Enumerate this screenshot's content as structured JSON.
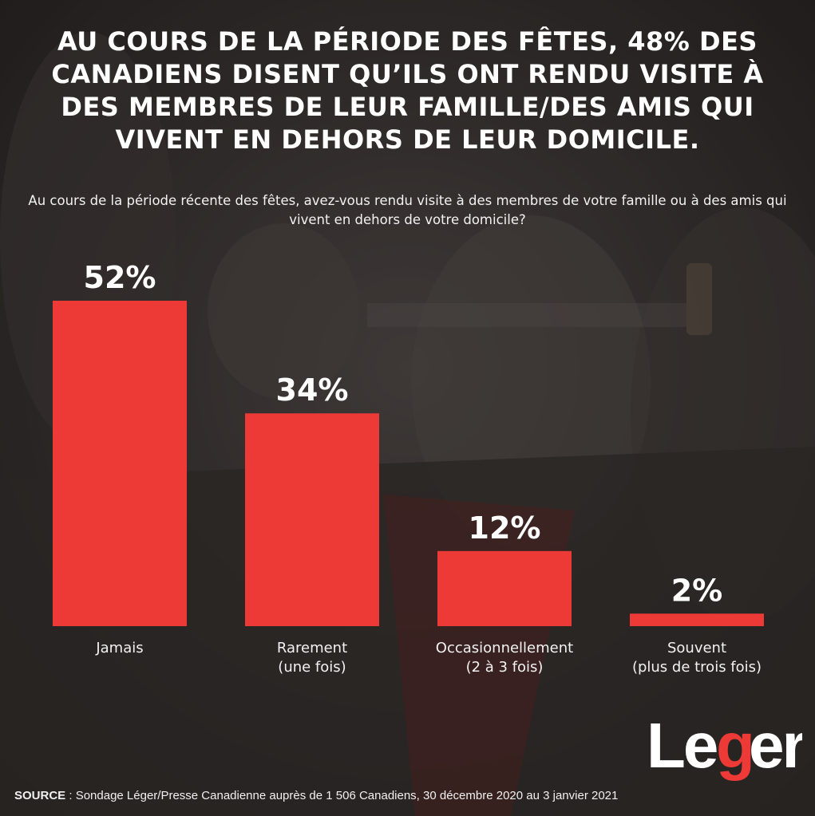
{
  "header": {
    "title": "Au cours de la période des fêtes, 48% des Canadiens disent qu’ils ont rendu visite à des membres de leur famille/des amis qui vivent en dehors de leur domicile.",
    "question": "Au cours de la période récente des fêtes, avez-vous rendu visite à des membres de votre famille ou à des amis qui vivent en dehors de votre domicile?"
  },
  "chart_data": {
    "type": "bar",
    "categories": [
      [
        "Jamais"
      ],
      [
        "Rarement",
        "(une fois)"
      ],
      [
        "Occasionnellement",
        "(2 à 3 fois)"
      ],
      [
        "Souvent",
        "(plus de trois fois)"
      ]
    ],
    "values": [
      52,
      34,
      12,
      2
    ],
    "value_labels": [
      "52%",
      "34%",
      "12%",
      "2%"
    ],
    "ylim": [
      0,
      52
    ],
    "grid": false,
    "bar_color": "#ee3a36"
  },
  "footer": {
    "source_label": "SOURCE",
    "source_text": " : Sondage Léger/Presse Canadienne auprès de 1 506 Canadiens, 30 décembre 2020 au 3 janvier 2021"
  },
  "logo": {
    "text": "Leger",
    "icon": "leger-logo",
    "color": "#ffffff",
    "accent": "#ee3a36"
  },
  "colors": {
    "overlay": "#2a2624",
    "text": "#ffffff"
  }
}
